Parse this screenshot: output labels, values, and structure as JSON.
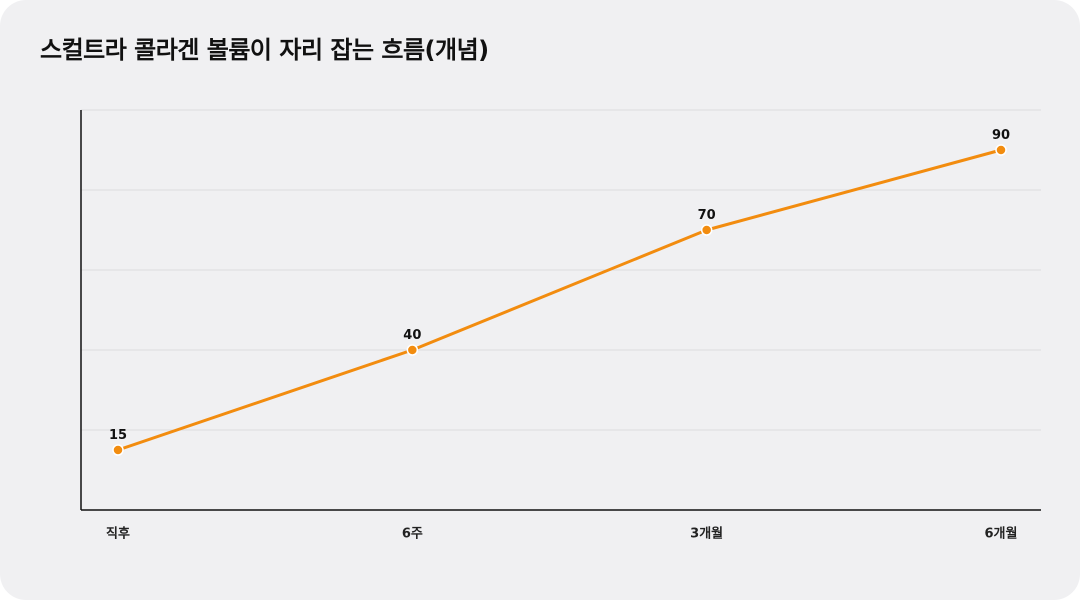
{
  "chart_data": {
    "type": "line",
    "title": "스컬트라 콜라겐 볼륨이 자리 잡는 흐름(개념)",
    "xlabel": "",
    "ylabel": "",
    "categories": [
      "직후",
      "6주",
      "3개월",
      "6개월"
    ],
    "series": [
      {
        "values": [
          15,
          40,
          70,
          90
        ]
      }
    ],
    "ylim": [
      0,
      100
    ],
    "y_gridlines": [
      20,
      40,
      60,
      80,
      100
    ],
    "y_tick_labels_shown": false,
    "grid": true,
    "legend": "none",
    "data_labels": true,
    "colors": {
      "line": "#f28c0f",
      "marker_fill": "#f28c0f",
      "marker_stroke": "#ffffff",
      "grid": "#dcdcdf",
      "axis": "#111111",
      "background": "#f0f0f2"
    }
  }
}
